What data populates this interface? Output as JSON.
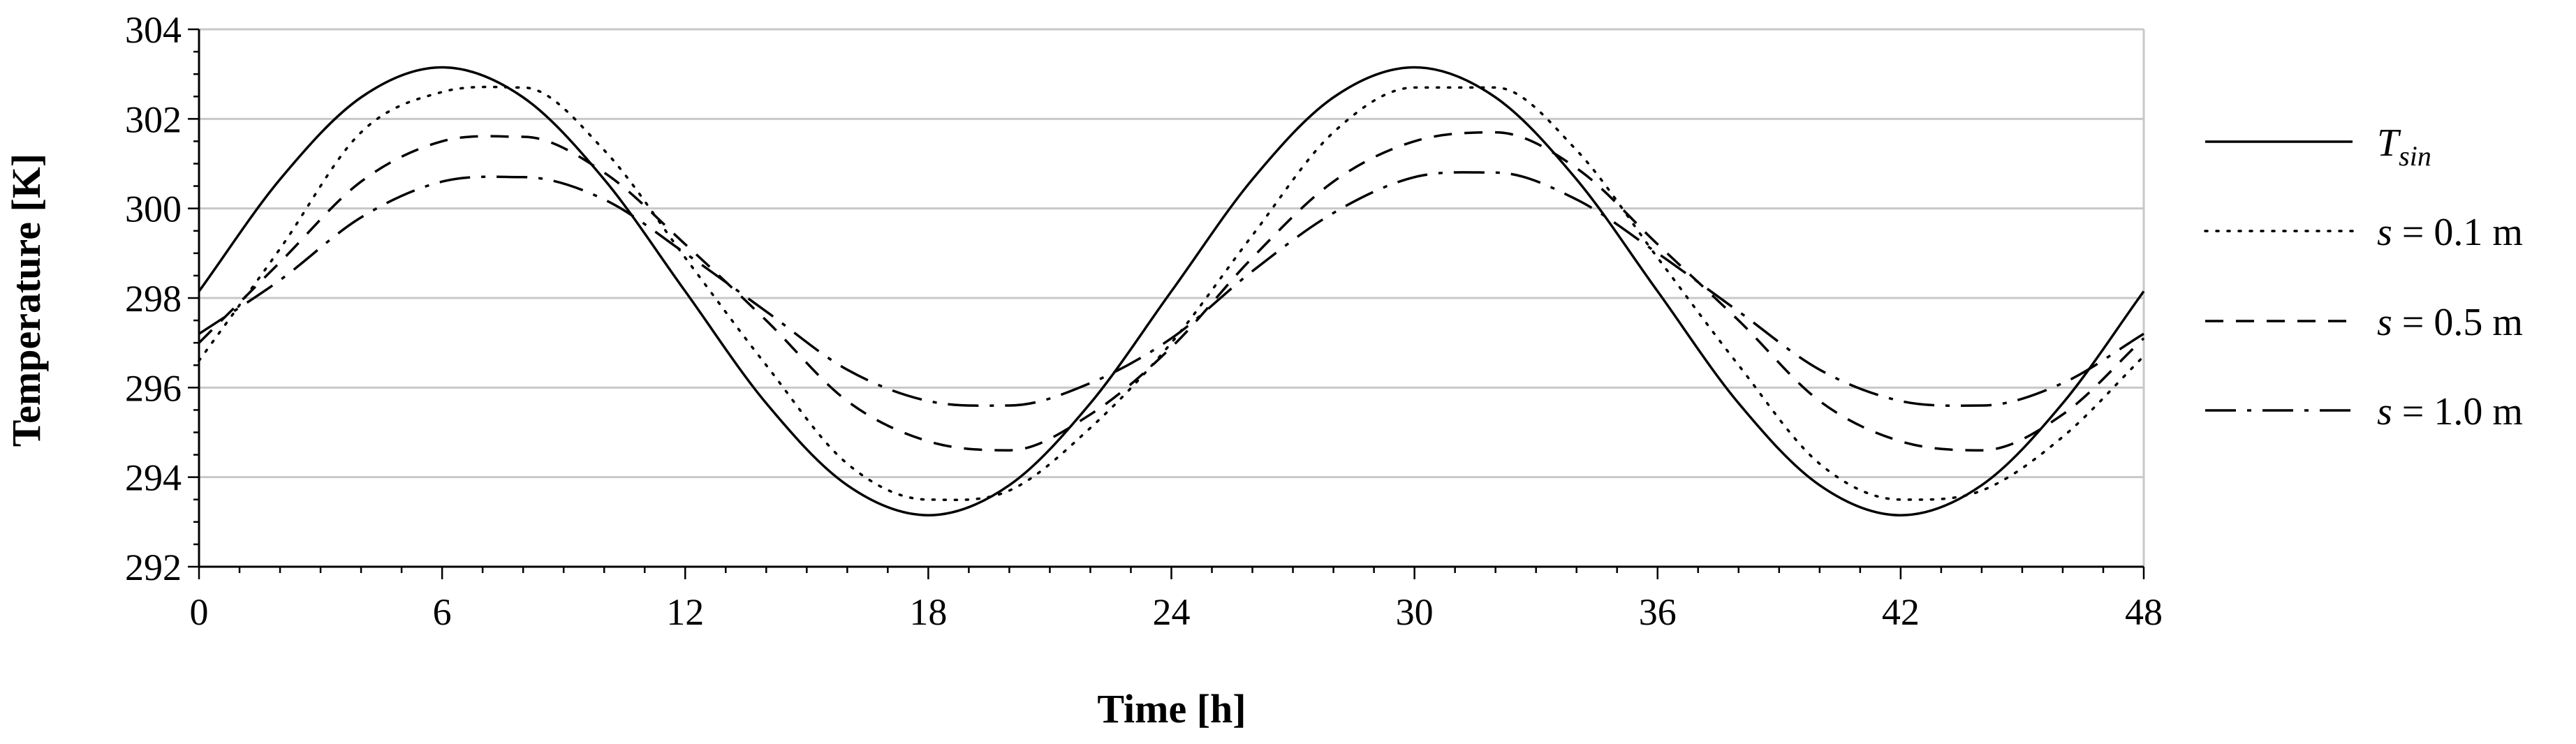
{
  "chart_data": {
    "type": "line",
    "title": "",
    "xlabel": "Time [h]",
    "ylabel": "Temperature [K]",
    "xlim": [
      0,
      48
    ],
    "ylim": [
      292,
      304
    ],
    "xticks": [
      0,
      6,
      12,
      18,
      24,
      30,
      36,
      42,
      48
    ],
    "yticks": [
      292,
      294,
      296,
      298,
      300,
      302,
      304
    ],
    "grid": "horizontal",
    "legend_position": "right",
    "x": [
      0,
      2,
      4,
      6,
      8,
      10,
      12,
      14,
      16,
      18,
      20,
      22,
      24,
      26,
      28,
      30,
      32,
      34,
      36,
      38,
      40,
      42,
      44,
      46,
      48
    ],
    "series": [
      {
        "name": "T_sin",
        "label_main": "T",
        "label_sub": "sin",
        "style": "solid",
        "values": [
          298.15,
          300.65,
          302.48,
          303.15,
          302.48,
          300.65,
          298.15,
          295.65,
          293.82,
          293.15,
          293.82,
          295.65,
          298.15,
          300.65,
          302.48,
          303.15,
          302.48,
          300.65,
          298.15,
          295.65,
          293.82,
          293.15,
          293.82,
          295.65,
          298.15
        ]
      },
      {
        "name": "s = 0.1 m",
        "label_main": "s",
        "label_rest": " = 0.1 m",
        "style": "dotted",
        "values": [
          296.6,
          299.1,
          301.7,
          302.6,
          302.7,
          301.3,
          298.9,
          296.5,
          294.3,
          293.5,
          293.7,
          295.1,
          297.0,
          299.4,
          301.7,
          302.7,
          302.7,
          301.3,
          298.9,
          296.5,
          294.3,
          293.5,
          293.7,
          294.9,
          296.7
        ]
      },
      {
        "name": "s = 0.5 m",
        "label_main": "s",
        "label_rest": " = 0.5 m",
        "style": "dashed",
        "values": [
          297.0,
          298.8,
          300.6,
          301.5,
          301.6,
          300.8,
          299.2,
          297.5,
          295.7,
          294.8,
          294.6,
          295.4,
          296.9,
          298.9,
          300.6,
          301.5,
          301.7,
          300.9,
          299.2,
          297.5,
          295.7,
          294.8,
          294.6,
          295.4,
          297.1
        ]
      },
      {
        "name": "s = 1.0 m",
        "label_main": "s",
        "label_rest": " = 1.0 m",
        "style": "dash-dot",
        "values": [
          297.2,
          298.4,
          299.8,
          300.6,
          300.7,
          300.2,
          299.0,
          297.7,
          296.4,
          295.7,
          295.6,
          296.1,
          297.1,
          298.6,
          299.9,
          300.7,
          300.8,
          300.2,
          299.0,
          297.7,
          296.4,
          295.7,
          295.6,
          296.1,
          297.2
        ]
      }
    ]
  }
}
